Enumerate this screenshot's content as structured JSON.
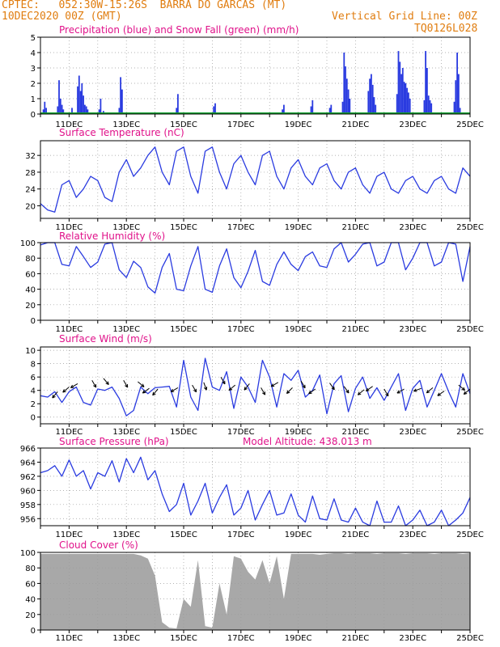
{
  "header": {
    "line1": "CPTEC:   052:30W-15:26S  BARRA DO GARCAS (MT)",
    "line2": "10DEC2020 00Z (GMT)",
    "grid_note": "Vertical Grid Line: 00Z",
    "code": "TQ0126L028"
  },
  "colors": {
    "header": "#e07d10",
    "title": "#e0128a",
    "series": "#2a3be0",
    "snow": "#12a030",
    "cloud": "#a8a8a8",
    "grid": "#9a9a9a"
  },
  "chart_data": [
    {
      "id": "precip",
      "type": "bar",
      "title": "Precipitation (blue) and Snow Fall (green) (mm/h)",
      "ylim": [
        0,
        5
      ],
      "yticks": [
        0,
        1,
        2,
        3,
        4,
        5
      ],
      "xticks": [
        "11DEC",
        "13DEC",
        "15DEC",
        "17DEC",
        "19DEC",
        "21DEC",
        "23DEC",
        "25DEC"
      ],
      "series": [
        {
          "name": "Precipitation",
          "points": [
            [
              0.1,
              0.3
            ],
            [
              0.15,
              0.8
            ],
            [
              0.2,
              0.4
            ],
            [
              0.6,
              0.5
            ],
            [
              0.65,
              2.2
            ],
            [
              0.7,
              1.0
            ],
            [
              0.75,
              0.6
            ],
            [
              0.8,
              0.3
            ],
            [
              1.1,
              0.4
            ],
            [
              1.3,
              1.8
            ],
            [
              1.35,
              2.5
            ],
            [
              1.4,
              1.5
            ],
            [
              1.45,
              2.0
            ],
            [
              1.5,
              1.2
            ],
            [
              1.55,
              0.6
            ],
            [
              1.6,
              0.5
            ],
            [
              1.65,
              0.3
            ],
            [
              2.05,
              0.3
            ],
            [
              2.1,
              1.0
            ],
            [
              2.2,
              0.2
            ],
            [
              2.75,
              0.4
            ],
            [
              2.8,
              2.4
            ],
            [
              2.85,
              1.6
            ],
            [
              4.75,
              0.4
            ],
            [
              4.8,
              1.3
            ],
            [
              6.05,
              0.5
            ],
            [
              6.1,
              0.7
            ],
            [
              8.45,
              0.3
            ],
            [
              8.5,
              0.6
            ],
            [
              9.45,
              0.5
            ],
            [
              9.5,
              0.9
            ],
            [
              10.1,
              0.4
            ],
            [
              10.15,
              0.6
            ],
            [
              10.55,
              0.8
            ],
            [
              10.6,
              4.0
            ],
            [
              10.65,
              3.1
            ],
            [
              10.7,
              2.3
            ],
            [
              10.75,
              1.6
            ],
            [
              10.8,
              1.0
            ],
            [
              11.45,
              1.5
            ],
            [
              11.5,
              2.3
            ],
            [
              11.55,
              2.6
            ],
            [
              11.6,
              1.9
            ],
            [
              11.65,
              1.1
            ],
            [
              11.7,
              0.6
            ],
            [
              12.45,
              1.3
            ],
            [
              12.5,
              4.1
            ],
            [
              12.55,
              3.4
            ],
            [
              12.6,
              2.6
            ],
            [
              12.65,
              3.0
            ],
            [
              12.7,
              2.1
            ],
            [
              12.75,
              2.0
            ],
            [
              12.8,
              1.7
            ],
            [
              12.85,
              1.4
            ],
            [
              12.9,
              1.0
            ],
            [
              13.4,
              0.9
            ],
            [
              13.45,
              4.1
            ],
            [
              13.5,
              3.0
            ],
            [
              13.55,
              1.2
            ],
            [
              13.6,
              0.9
            ],
            [
              13.65,
              0.7
            ],
            [
              14.45,
              0.8
            ],
            [
              14.5,
              2.2
            ],
            [
              14.55,
              4.0
            ],
            [
              14.6,
              2.6
            ],
            [
              14.65,
              0.4
            ]
          ]
        },
        {
          "name": "Snow Fall",
          "values": "0 throughout"
        }
      ]
    },
    {
      "id": "temp",
      "type": "line",
      "title": "Surface Temperature (nC)",
      "ylim": [
        17,
        35.5
      ],
      "yticks": [
        20,
        24,
        28,
        32
      ],
      "xticks": [
        "11DEC",
        "13DEC",
        "15DEC",
        "17DEC",
        "19DEC",
        "21DEC",
        "23DEC",
        "25DEC"
      ],
      "x": [
        0,
        0.25,
        0.5,
        0.75,
        1,
        1.25,
        1.5,
        1.75,
        2,
        2.25,
        2.5,
        2.75,
        3,
        3.25,
        3.5,
        3.75,
        4,
        4.25,
        4.5,
        4.75,
        5,
        5.25,
        5.5,
        5.75,
        6,
        6.25,
        6.5,
        6.75,
        7,
        7.25,
        7.5,
        7.75,
        8,
        8.25,
        8.5,
        8.75,
        9,
        9.25,
        9.5,
        9.75,
        10,
        10.25,
        10.5,
        10.75,
        11,
        11.25,
        11.5,
        11.75,
        12,
        12.25,
        12.5,
        12.75,
        13,
        13.25,
        13.5,
        13.75,
        14,
        14.25,
        14.5,
        14.75,
        15
      ],
      "values": [
        20.5,
        19,
        18.5,
        25,
        26,
        22,
        24,
        27,
        26,
        22,
        21,
        28,
        31,
        27,
        29,
        32,
        34,
        28,
        25,
        33,
        34,
        27,
        23,
        33,
        34,
        28,
        24,
        30,
        32,
        28,
        25,
        32,
        33,
        27,
        24,
        29,
        31,
        27,
        25,
        29,
        30,
        26,
        24,
        28,
        29,
        25,
        23,
        27,
        28,
        24,
        23,
        26,
        27,
        24,
        23,
        26,
        27,
        24,
        23,
        29,
        27
      ]
    },
    {
      "id": "rh",
      "type": "line",
      "title": "Relative Humidity (%)",
      "ylim": [
        0,
        100
      ],
      "yticks": [
        0,
        20,
        40,
        60,
        80,
        100
      ],
      "xticks": [
        "11DEC",
        "13DEC",
        "15DEC",
        "17DEC",
        "19DEC",
        "21DEC",
        "23DEC",
        "25DEC"
      ],
      "x": [
        0,
        0.25,
        0.5,
        0.75,
        1,
        1.25,
        1.5,
        1.75,
        2,
        2.25,
        2.5,
        2.75,
        3,
        3.25,
        3.5,
        3.75,
        4,
        4.25,
        4.5,
        4.75,
        5,
        5.25,
        5.5,
        5.75,
        6,
        6.25,
        6.5,
        6.75,
        7,
        7.25,
        7.5,
        7.75,
        8,
        8.25,
        8.5,
        8.75,
        9,
        9.25,
        9.5,
        9.75,
        10,
        10.25,
        10.5,
        10.75,
        11,
        11.25,
        11.5,
        11.75,
        12,
        12.25,
        12.5,
        12.75,
        13,
        13.25,
        13.5,
        13.75,
        14,
        14.25,
        14.5,
        14.75,
        15
      ],
      "values": [
        97,
        100,
        100,
        72,
        70,
        95,
        82,
        68,
        75,
        98,
        100,
        65,
        55,
        76,
        68,
        43,
        35,
        68,
        86,
        40,
        38,
        70,
        95,
        40,
        36,
        70,
        92,
        55,
        42,
        63,
        90,
        50,
        45,
        72,
        88,
        72,
        64,
        82,
        88,
        70,
        68,
        92,
        100,
        75,
        85,
        98,
        100,
        70,
        75,
        100,
        100,
        65,
        80,
        100,
        100,
        70,
        75,
        100,
        98,
        50,
        95
      ]
    },
    {
      "id": "wind",
      "type": "line",
      "title": "Surface Wind (m/s)",
      "ylim": [
        -1,
        10.5
      ],
      "yticks": [
        0,
        2,
        4,
        6,
        8,
        10
      ],
      "xticks": [
        "11DEC",
        "13DEC",
        "15DEC",
        "17DEC",
        "19DEC",
        "21DEC",
        "23DEC",
        "25DEC"
      ],
      "x": [
        0,
        0.25,
        0.5,
        0.75,
        1,
        1.25,
        1.5,
        1.75,
        2,
        2.25,
        2.5,
        2.75,
        3,
        3.25,
        3.5,
        3.75,
        4,
        4.25,
        4.5,
        4.75,
        5,
        5.25,
        5.5,
        5.75,
        6,
        6.25,
        6.5,
        6.75,
        7,
        7.25,
        7.5,
        7.75,
        8,
        8.25,
        8.5,
        8.75,
        9,
        9.25,
        9.5,
        9.75,
        10,
        10.25,
        10.5,
        10.75,
        11,
        11.25,
        11.5,
        11.75,
        12,
        12.25,
        12.5,
        12.75,
        13,
        13.25,
        13.5,
        13.75,
        14,
        14.25,
        14.5,
        14.75,
        15
      ],
      "values": [
        3.2,
        3.0,
        3.8,
        2.2,
        3.8,
        4.5,
        2.2,
        1.8,
        4.2,
        4.0,
        4.5,
        2.8,
        0.2,
        1.0,
        4.5,
        3.5,
        4.4,
        4.5,
        4.6,
        1.5,
        8.5,
        3.0,
        1.0,
        8.8,
        4.5,
        4.0,
        6.8,
        1.3,
        6.0,
        4.5,
        2.2,
        8.5,
        6.0,
        1.5,
        6.5,
        5.5,
        7.0,
        3.0,
        4.0,
        6.3,
        0.5,
        5.0,
        6.2,
        0.8,
        4.3,
        6.0,
        2.8,
        4.4,
        2.5,
        4.5,
        6.5,
        1.0,
        4.3,
        5.5,
        1.5,
        4.0,
        6.5,
        3.8,
        1.5,
        6.5,
        3.5
      ],
      "arrows": [
        [
          0.6,
          3.8,
          230
        ],
        [
          1.0,
          4.5,
          220
        ],
        [
          1.3,
          5.0,
          210
        ],
        [
          1.8,
          5.5,
          300
        ],
        [
          2.2,
          5.8,
          310
        ],
        [
          2.9,
          5.5,
          300
        ],
        [
          3.4,
          5.3,
          320
        ],
        [
          3.8,
          4.3,
          215
        ],
        [
          4.1,
          4.2,
          230
        ],
        [
          4.8,
          4.4,
          210
        ],
        [
          5.3,
          4.8,
          300
        ],
        [
          5.7,
          5.2,
          290
        ],
        [
          6.3,
          6.0,
          300
        ],
        [
          6.8,
          4.8,
          220
        ],
        [
          7.3,
          5.0,
          230
        ],
        [
          7.7,
          4.4,
          300
        ],
        [
          8.3,
          5.2,
          210
        ],
        [
          8.8,
          4.4,
          225
        ],
        [
          9.1,
          5.4,
          300
        ],
        [
          9.6,
          4.2,
          215
        ],
        [
          10.1,
          5.1,
          305
        ],
        [
          10.6,
          4.6,
          305
        ],
        [
          11.3,
          4.1,
          220
        ],
        [
          11.6,
          4.6,
          215
        ],
        [
          12.0,
          4.2,
          300
        ],
        [
          12.7,
          4.2,
          210
        ],
        [
          13.3,
          4.3,
          200
        ],
        [
          13.7,
          4.4,
          220
        ],
        [
          14.1,
          3.9,
          215
        ],
        [
          14.6,
          4.8,
          320
        ],
        [
          15.0,
          4.2,
          220
        ]
      ]
    },
    {
      "id": "pres",
      "type": "line",
      "title": "Surface Pressure (hPa)",
      "annotation": "Model Altitude: 438.013 m",
      "ylim": [
        955,
        966
      ],
      "yticks": [
        956,
        958,
        960,
        962,
        964,
        966
      ],
      "xticks": [
        "11DEC",
        "13DEC",
        "15DEC",
        "17DEC",
        "19DEC",
        "21DEC",
        "23DEC",
        "25DEC"
      ],
      "x": [
        0,
        0.25,
        0.5,
        0.75,
        1,
        1.25,
        1.5,
        1.75,
        2,
        2.25,
        2.5,
        2.75,
        3,
        3.25,
        3.5,
        3.75,
        4,
        4.25,
        4.5,
        4.75,
        5,
        5.25,
        5.5,
        5.75,
        6,
        6.25,
        6.5,
        6.75,
        7,
        7.25,
        7.5,
        7.75,
        8,
        8.25,
        8.5,
        8.75,
        9,
        9.25,
        9.5,
        9.75,
        10,
        10.25,
        10.5,
        10.75,
        11,
        11.25,
        11.5,
        11.75,
        12,
        12.25,
        12.5,
        12.75,
        13,
        13.25,
        13.5,
        13.75,
        14,
        14.25,
        14.5,
        14.75,
        15
      ],
      "values": [
        962.5,
        962.8,
        963.5,
        962.0,
        964.3,
        962.0,
        962.8,
        960.2,
        962.5,
        962.0,
        964.2,
        961.2,
        964.5,
        962.5,
        964.7,
        961.5,
        962.8,
        959.5,
        957.0,
        958.0,
        961.0,
        956.5,
        958.5,
        961.0,
        956.8,
        959.0,
        960.8,
        956.5,
        957.5,
        960.0,
        955.8,
        958.0,
        960.0,
        956.5,
        956.8,
        959.5,
        956.5,
        955.5,
        959.2,
        956.0,
        955.8,
        958.8,
        955.8,
        955.5,
        957.5,
        955.5,
        955.0,
        958.5,
        955.5,
        955.5,
        957.8,
        954.8,
        955.8,
        957.2,
        955.0,
        955.5,
        957.2,
        955.0,
        955.8,
        956.8,
        959.0
      ]
    },
    {
      "id": "cloud",
      "type": "area",
      "title": "Cloud Cover (%)",
      "ylim": [
        0,
        100
      ],
      "yticks": [
        0,
        20,
        40,
        60,
        80,
        100
      ],
      "xticks": [
        "11DEC",
        "13DEC",
        "15DEC",
        "17DEC",
        "19DEC",
        "21DEC",
        "23DEC",
        "25DEC"
      ],
      "x": [
        0,
        0.25,
        0.5,
        0.75,
        1,
        1.25,
        1.5,
        1.75,
        2,
        2.25,
        2.5,
        2.75,
        3,
        3.25,
        3.5,
        3.75,
        4,
        4.25,
        4.5,
        4.75,
        5,
        5.25,
        5.5,
        5.75,
        6,
        6.25,
        6.5,
        6.75,
        7,
        7.25,
        7.5,
        7.75,
        8,
        8.25,
        8.5,
        8.75,
        9,
        9.25,
        9.5,
        9.75,
        10,
        10.25,
        10.5,
        10.75,
        11,
        11.25,
        11.5,
        11.75,
        12,
        12.25,
        12.5,
        12.75,
        13,
        13.25,
        13.5,
        13.75,
        14,
        14.25,
        14.5,
        14.75,
        15
      ],
      "values": [
        98,
        98,
        98,
        98,
        98,
        98,
        98,
        98,
        98,
        98,
        98,
        98,
        98,
        98,
        96,
        92,
        70,
        10,
        3,
        2,
        40,
        30,
        90,
        5,
        3,
        60,
        20,
        95,
        92,
        75,
        65,
        90,
        60,
        95,
        40,
        98,
        98,
        98,
        98,
        97,
        98,
        99,
        99,
        98,
        99,
        99,
        99,
        98,
        99,
        99,
        99,
        98,
        99,
        99,
        99,
        98,
        99,
        99,
        99,
        98,
        99
      ]
    }
  ]
}
